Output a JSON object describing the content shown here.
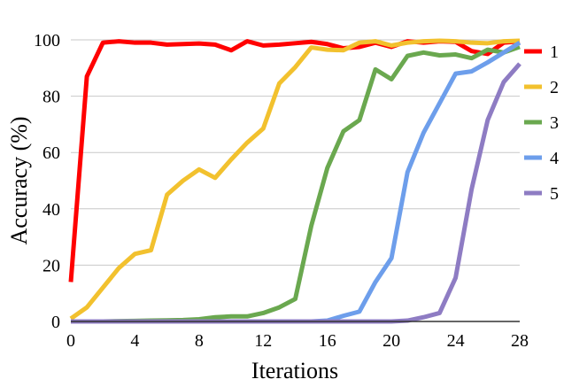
{
  "chart_data": {
    "type": "line",
    "xlabel": "Iterations",
    "ylabel": "Accuracy (%)",
    "xlim": [
      0,
      28
    ],
    "ylim": [
      0,
      100
    ],
    "xticks": [
      0,
      4,
      8,
      12,
      16,
      20,
      24,
      28
    ],
    "yticks": [
      0,
      20,
      40,
      60,
      80,
      100
    ],
    "grid": "horizontal",
    "legend_position": "right",
    "x": [
      0,
      1,
      2,
      3,
      4,
      5,
      6,
      7,
      8,
      9,
      10,
      11,
      12,
      13,
      14,
      15,
      16,
      17,
      18,
      19,
      20,
      21,
      22,
      23,
      24,
      25,
      26,
      27,
      28
    ],
    "series": [
      {
        "name": "1",
        "color": "#ff0000",
        "values": [
          14,
          87,
          99,
          99.5,
          99,
          99,
          98.3,
          98.5,
          98.7,
          98.3,
          96.3,
          99.5,
          98,
          98.3,
          98.8,
          99.3,
          98.5,
          97,
          97.5,
          99,
          97.5,
          99.5,
          99,
          99.5,
          99.3,
          96,
          95,
          99,
          99.5
        ]
      },
      {
        "name": "2",
        "color": "#f2c12e",
        "values": [
          1,
          5,
          12,
          19,
          24,
          25.3,
          45,
          50,
          54,
          51,
          57.5,
          63.5,
          68.5,
          84.5,
          90.3,
          97.3,
          96.5,
          96.3,
          99,
          99.5,
          98,
          99,
          99.5,
          99.7,
          99.5,
          99,
          98.8,
          99.5,
          99.7
        ]
      },
      {
        "name": "3",
        "color": "#6aa84f",
        "values": [
          0,
          0,
          0,
          0.1,
          0.2,
          0.3,
          0.4,
          0.5,
          0.8,
          1.5,
          1.8,
          1.8,
          3,
          5,
          8,
          34,
          54.5,
          67.5,
          71.5,
          89.5,
          86,
          94.3,
          95.5,
          94.5,
          94.8,
          93.5,
          96.5,
          95.5,
          97.5
        ]
      },
      {
        "name": "4",
        "color": "#6d9eeb",
        "values": [
          0,
          0,
          0,
          0,
          0,
          0,
          0,
          0,
          0,
          0,
          0,
          0,
          0,
          0,
          0,
          0,
          0.3,
          2,
          3.5,
          14,
          22.5,
          53,
          67,
          77.5,
          88,
          88.8,
          92,
          95.5,
          99
        ]
      },
      {
        "name": "5",
        "color": "#8e7cc3",
        "values": [
          0,
          0,
          0,
          0,
          0,
          0,
          0,
          0,
          0,
          0,
          0,
          0,
          0,
          0,
          0,
          0,
          0,
          0,
          0,
          0,
          0,
          0.3,
          1.5,
          3,
          15.5,
          47,
          71.5,
          85,
          91.5
        ]
      }
    ]
  }
}
